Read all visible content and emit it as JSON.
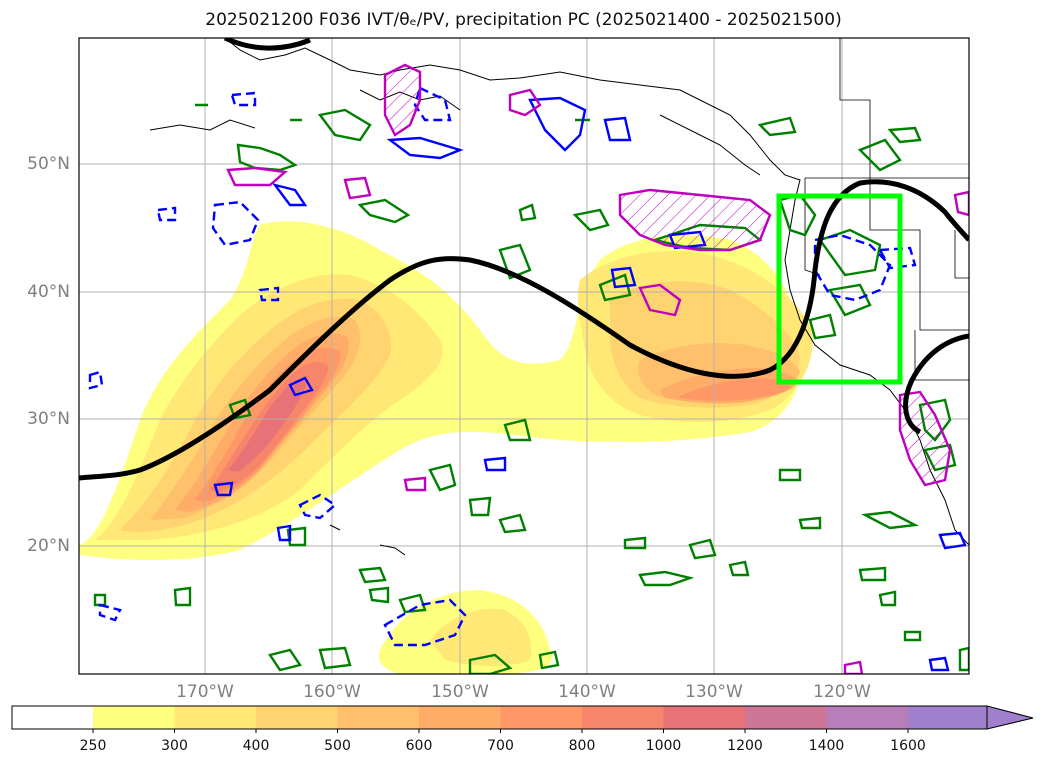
{
  "title": "2025021200 F036 IVT/θₑ/PV, precipitation PC (2025021400 - 2025021500)",
  "map": {
    "lat_labels": [
      "50°N",
      "40°N",
      "30°N",
      "20°N"
    ],
    "lon_labels": [
      "170°W",
      "160°W",
      "150°W",
      "140°W",
      "130°W",
      "120°W"
    ],
    "region_box_color": "#00ff00",
    "jet_line_color": "#000000",
    "contour_colors": {
      "green": "#008000",
      "blue": "#0000ff",
      "magenta": "#bf00bf"
    }
  },
  "colorbar": {
    "labels": [
      "250",
      "300",
      "400",
      "500",
      "600",
      "700",
      "800",
      "1000",
      "1200",
      "1400",
      "1600"
    ],
    "colors": [
      "#ffff7f",
      "#ffe876",
      "#ffd470",
      "#ffc06c",
      "#ffac69",
      "#ff9766",
      "#f7856b",
      "#e97278",
      "#cf7596",
      "#b77eb9",
      "#a07fcc"
    ]
  }
}
